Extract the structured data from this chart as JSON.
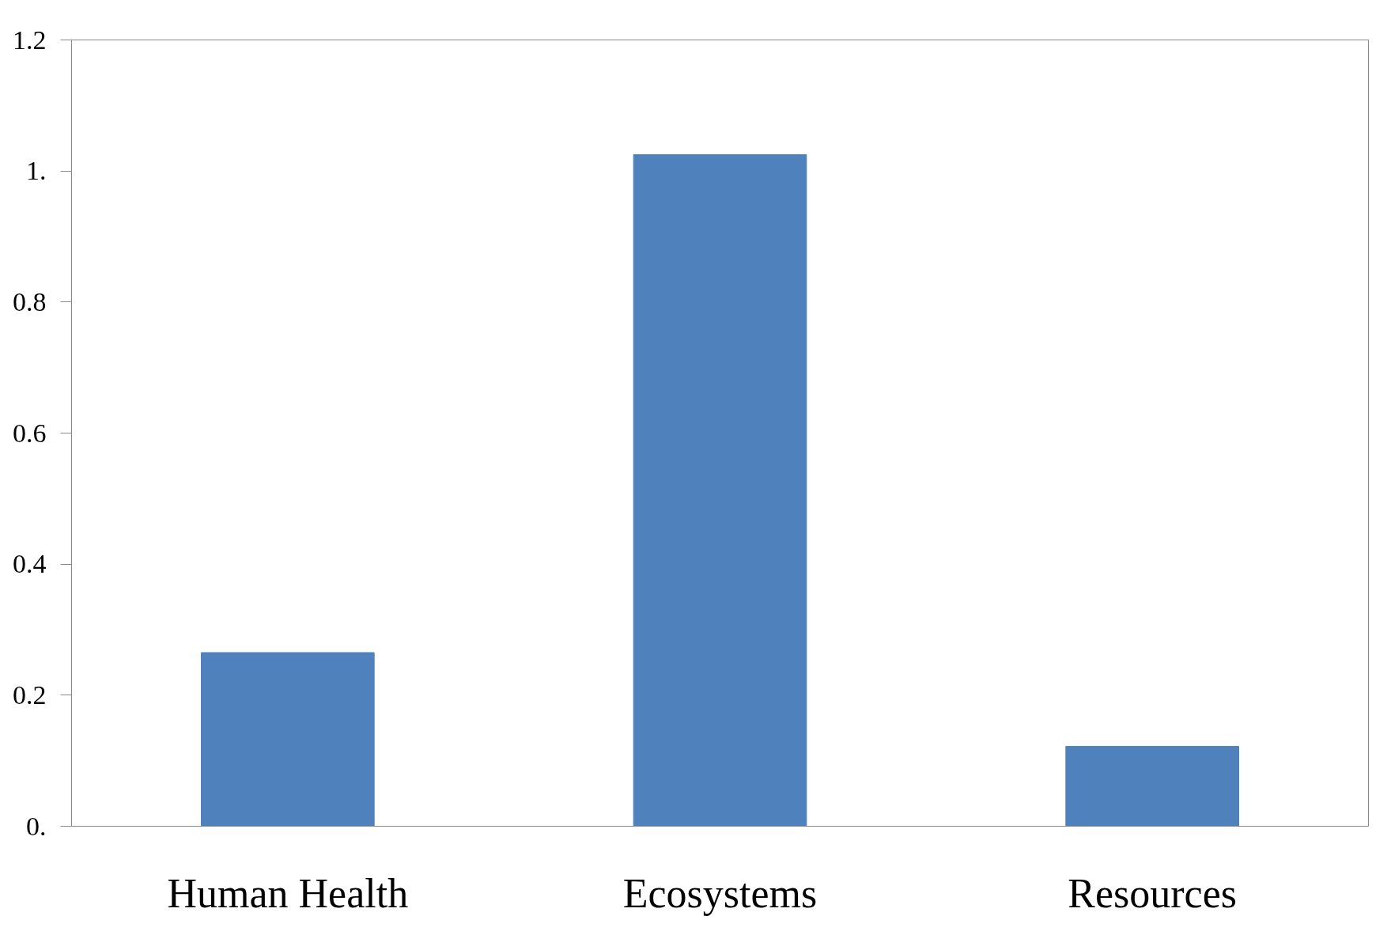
{
  "chart_data": {
    "type": "bar",
    "categories": [
      "Human Health",
      "Ecosystems",
      "Resources"
    ],
    "values": [
      0.265,
      1.025,
      0.122
    ],
    "color": "#4f81bd",
    "ylim": [
      0,
      1.2
    ],
    "yticks": [
      {
        "value": 0,
        "label": "0."
      },
      0.2,
      0.4,
      0.6,
      0.8,
      {
        "value": 1,
        "label": "1."
      },
      1.2
    ],
    "grid": false
  }
}
